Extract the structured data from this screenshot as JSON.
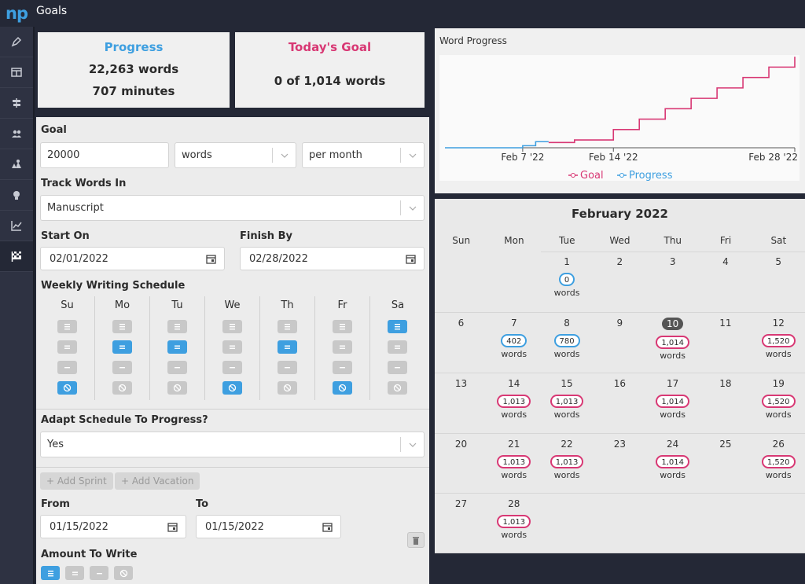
{
  "app": {
    "logo": "np",
    "title": "Goals"
  },
  "sidebar": {
    "items": [
      "pen-icon",
      "layout-icon",
      "signpost-icon",
      "users-icon",
      "map-icon",
      "lightbulb-icon",
      "chart-icon",
      "flag-icon"
    ]
  },
  "stats": {
    "progress": {
      "title": "Progress",
      "words": "22,263 words",
      "minutes": "707 minutes"
    },
    "today": {
      "title": "Today's Goal",
      "text": "0 of 1,014 words"
    }
  },
  "form": {
    "goal_label": "Goal",
    "goal_value": "20000",
    "unit": "words",
    "period": "per month",
    "track_label": "Track Words In",
    "track_value": "Manuscript",
    "start_label": "Start On",
    "start_value": "02/01/2022",
    "finish_label": "Finish By",
    "finish_value": "02/28/2022",
    "schedule_label": "Weekly Writing Schedule",
    "days": [
      {
        "name": "Su",
        "levels": [
          "off",
          "off",
          "off",
          "on"
        ]
      },
      {
        "name": "Mo",
        "levels": [
          "off",
          "on",
          "off",
          "off"
        ]
      },
      {
        "name": "Tu",
        "levels": [
          "off",
          "on",
          "off",
          "off"
        ]
      },
      {
        "name": "We",
        "levels": [
          "off",
          "off",
          "off",
          "on"
        ]
      },
      {
        "name": "Th",
        "levels": [
          "off",
          "on",
          "off",
          "off"
        ]
      },
      {
        "name": "Fr",
        "levels": [
          "off",
          "off",
          "off",
          "on"
        ]
      },
      {
        "name": "Sa",
        "levels": [
          "on",
          "off",
          "off",
          "off"
        ]
      }
    ],
    "adapt_label": "Adapt Schedule To Progress?",
    "adapt_value": "Yes",
    "add_sprint": "+ Add Sprint",
    "add_vacation": "+ Add Vacation",
    "from_label": "From",
    "from_value": "01/15/2022",
    "to_label": "To",
    "to_value": "01/15/2022",
    "amount_label": "Amount To Write"
  },
  "chart_data": {
    "type": "line",
    "title": "Word Progress",
    "x_ticks": [
      "Feb 7 '22",
      "Feb 14 '22",
      "Feb 28 '22"
    ],
    "x_tick_days": [
      7,
      14,
      28
    ],
    "x_range": [
      1,
      28
    ],
    "series": [
      {
        "name": "Goal",
        "color": "#d83874",
        "x": [
          9,
          10,
          11,
          12,
          13,
          14,
          15,
          16,
          17,
          18,
          19,
          20,
          21,
          22,
          23,
          24,
          25,
          26,
          27,
          28
        ],
        "values": [
          1014,
          1014,
          1520,
          1520,
          1520,
          3533,
          3533,
          5553,
          5553,
          7573,
          7573,
          9593,
          9593,
          11613,
          11613,
          13633,
          13633,
          15653,
          15653,
          17673
        ]
      },
      {
        "name": "Progress",
        "color": "#3e9fe0",
        "x": [
          1,
          2,
          3,
          4,
          5,
          6,
          7,
          8,
          9
        ],
        "values": [
          0,
          0,
          0,
          0,
          0,
          0,
          402,
          1182,
          1182
        ]
      }
    ],
    "legend": "bottom"
  },
  "calendar": {
    "title": "February 2022",
    "weekdays": [
      "Sun",
      "Mon",
      "Tue",
      "Wed",
      "Thu",
      "Fri",
      "Sat"
    ],
    "days": [
      {
        "d": "1",
        "col": 2,
        "row": 0,
        "badge": "0",
        "kind": "p",
        "words": "words"
      },
      {
        "d": "2",
        "col": 3,
        "row": 0
      },
      {
        "d": "3",
        "col": 4,
        "row": 0
      },
      {
        "d": "4",
        "col": 5,
        "row": 0
      },
      {
        "d": "5",
        "col": 6,
        "row": 0
      },
      {
        "d": "6",
        "col": 0,
        "row": 1
      },
      {
        "d": "7",
        "col": 1,
        "row": 1,
        "badge": "402",
        "kind": "p",
        "words": "words"
      },
      {
        "d": "8",
        "col": 2,
        "row": 1,
        "badge": "780",
        "kind": "p",
        "words": "words"
      },
      {
        "d": "9",
        "col": 3,
        "row": 1
      },
      {
        "d": "10",
        "col": 4,
        "row": 1,
        "today": true,
        "badge": "1,014",
        "kind": "g",
        "words": "words"
      },
      {
        "d": "11",
        "col": 5,
        "row": 1
      },
      {
        "d": "12",
        "col": 6,
        "row": 1,
        "badge": "1,520",
        "kind": "g",
        "words": "words"
      },
      {
        "d": "13",
        "col": 0,
        "row": 2
      },
      {
        "d": "14",
        "col": 1,
        "row": 2,
        "badge": "1,013",
        "kind": "g",
        "words": "words"
      },
      {
        "d": "15",
        "col": 2,
        "row": 2,
        "badge": "1,013",
        "kind": "g",
        "words": "words"
      },
      {
        "d": "16",
        "col": 3,
        "row": 2
      },
      {
        "d": "17",
        "col": 4,
        "row": 2,
        "badge": "1,014",
        "kind": "g",
        "words": "words"
      },
      {
        "d": "18",
        "col": 5,
        "row": 2
      },
      {
        "d": "19",
        "col": 6,
        "row": 2,
        "badge": "1,520",
        "kind": "g",
        "words": "words"
      },
      {
        "d": "20",
        "col": 0,
        "row": 3
      },
      {
        "d": "21",
        "col": 1,
        "row": 3,
        "badge": "1,013",
        "kind": "g",
        "words": "words"
      },
      {
        "d": "22",
        "col": 2,
        "row": 3,
        "badge": "1,013",
        "kind": "g",
        "words": "words"
      },
      {
        "d": "23",
        "col": 3,
        "row": 3
      },
      {
        "d": "24",
        "col": 4,
        "row": 3,
        "badge": "1,014",
        "kind": "g",
        "words": "words"
      },
      {
        "d": "25",
        "col": 5,
        "row": 3
      },
      {
        "d": "26",
        "col": 6,
        "row": 3,
        "badge": "1,520",
        "kind": "g",
        "words": "words"
      },
      {
        "d": "27",
        "col": 0,
        "row": 4
      },
      {
        "d": "28",
        "col": 1,
        "row": 4,
        "badge": "1,013",
        "kind": "g",
        "words": "words"
      }
    ]
  }
}
